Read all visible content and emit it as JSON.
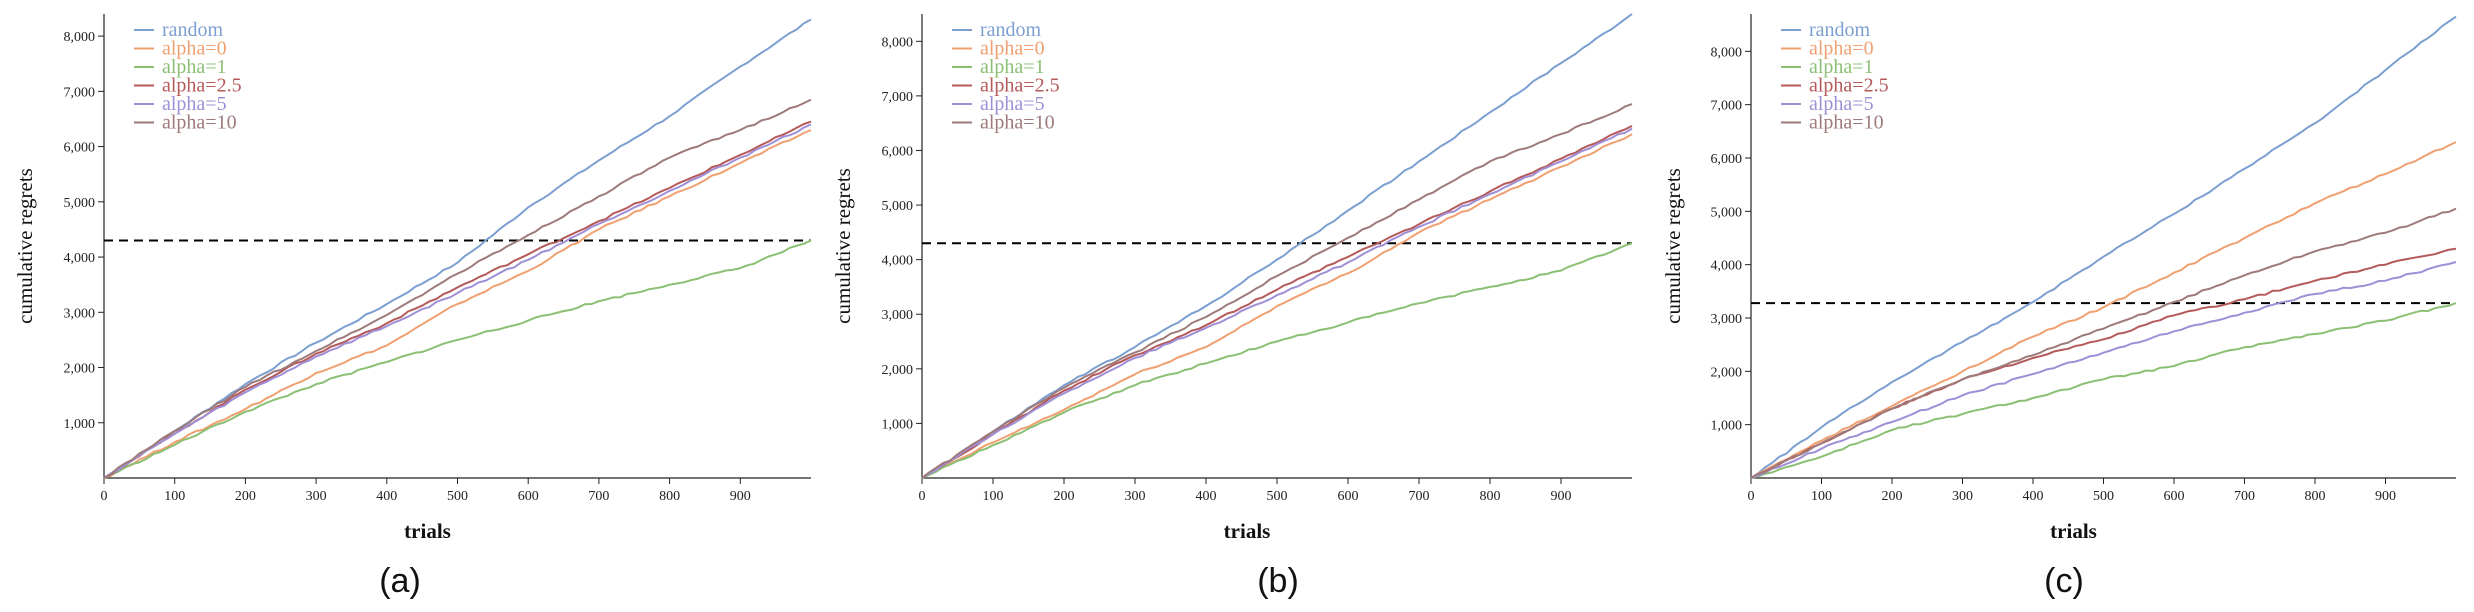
{
  "chart_data": [
    {
      "type": "line",
      "caption": "(a)",
      "xlabel": "trials",
      "ylabel": "cumulative regrets",
      "xlim": [
        0,
        1000
      ],
      "ylim": [
        0,
        8400
      ],
      "x_ticks": [
        0,
        100,
        200,
        300,
        400,
        500,
        600,
        700,
        800,
        900
      ],
      "x_tick_labels": [
        "0",
        "100",
        "200",
        "300",
        "400",
        "500",
        "600",
        "700",
        "800",
        "900"
      ],
      "y_ticks": [
        1000,
        2000,
        3000,
        4000,
        5000,
        6000,
        7000,
        8000
      ],
      "y_tick_labels": [
        "1,000",
        "2,000",
        "3,000",
        "4,000",
        "5,000",
        "6,000",
        "7,000",
        "8,000"
      ],
      "legend_position": "top-left",
      "hline": {
        "y": 4300,
        "style": "dashed",
        "color": "#000000"
      },
      "series": [
        {
          "name": "random",
          "color": "#7b9fd0",
          "points": [
            [
              0,
              0
            ],
            [
              100,
              850
            ],
            [
              200,
              1700
            ],
            [
              300,
              2450
            ],
            [
              400,
              3150
            ],
            [
              500,
              3900
            ],
            [
              600,
              4900
            ],
            [
              700,
              5750
            ],
            [
              800,
              6550
            ],
            [
              900,
              7450
            ],
            [
              1000,
              8300
            ]
          ]
        },
        {
          "name": "alpha=0",
          "color": "#f0a070",
          "points": [
            [
              0,
              0
            ],
            [
              100,
              650
            ],
            [
              200,
              1250
            ],
            [
              300,
              1900
            ],
            [
              400,
              2400
            ],
            [
              500,
              3150
            ],
            [
              600,
              3750
            ],
            [
              700,
              4500
            ],
            [
              800,
              5100
            ],
            [
              900,
              5700
            ],
            [
              1000,
              6300
            ]
          ]
        },
        {
          "name": "alpha=1",
          "color": "#8bc074",
          "points": [
            [
              0,
              0
            ],
            [
              100,
              600
            ],
            [
              200,
              1200
            ],
            [
              300,
              1700
            ],
            [
              400,
              2100
            ],
            [
              500,
              2500
            ],
            [
              600,
              2850
            ],
            [
              700,
              3200
            ],
            [
              800,
              3500
            ],
            [
              900,
              3800
            ],
            [
              1000,
              4300
            ]
          ]
        },
        {
          "name": "alpha=2.5",
          "color": "#b55a5a",
          "points": [
            [
              0,
              0
            ],
            [
              100,
              800
            ],
            [
              200,
              1600
            ],
            [
              300,
              2250
            ],
            [
              400,
              2800
            ],
            [
              500,
              3450
            ],
            [
              600,
              4050
            ],
            [
              700,
              4650
            ],
            [
              800,
              5250
            ],
            [
              900,
              5850
            ],
            [
              1000,
              6450
            ]
          ]
        },
        {
          "name": "alpha=5",
          "color": "#9f8fd6",
          "points": [
            [
              0,
              0
            ],
            [
              100,
              800
            ],
            [
              200,
              1550
            ],
            [
              300,
              2200
            ],
            [
              400,
              2750
            ],
            [
              500,
              3350
            ],
            [
              600,
              3950
            ],
            [
              700,
              4600
            ],
            [
              800,
              5200
            ],
            [
              900,
              5800
            ],
            [
              1000,
              6400
            ]
          ]
        },
        {
          "name": "alpha=10",
          "color": "#9e7a7a",
          "points": [
            [
              0,
              0
            ],
            [
              100,
              850
            ],
            [
              200,
              1650
            ],
            [
              300,
              2300
            ],
            [
              400,
              2950
            ],
            [
              500,
              3700
            ],
            [
              600,
              4400
            ],
            [
              700,
              5100
            ],
            [
              800,
              5800
            ],
            [
              900,
              6300
            ],
            [
              1000,
              6850
            ]
          ]
        }
      ]
    },
    {
      "type": "line",
      "caption": "(b)",
      "xlabel": "trials",
      "ylabel": "cumulative regrets",
      "xlim": [
        0,
        1000
      ],
      "ylim": [
        0,
        8500
      ],
      "x_ticks": [
        0,
        100,
        200,
        300,
        400,
        500,
        600,
        700,
        800,
        900
      ],
      "x_tick_labels": [
        "0",
        "100",
        "200",
        "300",
        "400",
        "500",
        "600",
        "700",
        "800",
        "900"
      ],
      "y_ticks": [
        1000,
        2000,
        3000,
        4000,
        5000,
        6000,
        7000,
        8000
      ],
      "y_tick_labels": [
        "1,000",
        "2,000",
        "3,000",
        "4,000",
        "5,000",
        "6,000",
        "7,000",
        "8,000"
      ],
      "legend_position": "top-left",
      "hline": {
        "y": 4300,
        "style": "dashed",
        "color": "#000000"
      },
      "series": [
        {
          "name": "random",
          "color": "#7b9fd0",
          "points": [
            [
              0,
              0
            ],
            [
              100,
              850
            ],
            [
              200,
              1700
            ],
            [
              300,
              2400
            ],
            [
              400,
              3150
            ],
            [
              500,
              4000
            ],
            [
              600,
              4900
            ],
            [
              700,
              5800
            ],
            [
              800,
              6700
            ],
            [
              900,
              7600
            ],
            [
              1000,
              8500
            ]
          ]
        },
        {
          "name": "alpha=0",
          "color": "#f0a070",
          "points": [
            [
              0,
              0
            ],
            [
              100,
              650
            ],
            [
              200,
              1250
            ],
            [
              300,
              1900
            ],
            [
              400,
              2400
            ],
            [
              500,
              3150
            ],
            [
              600,
              3750
            ],
            [
              700,
              4500
            ],
            [
              800,
              5100
            ],
            [
              900,
              5700
            ],
            [
              1000,
              6300
            ]
          ]
        },
        {
          "name": "alpha=1",
          "color": "#8bc074",
          "points": [
            [
              0,
              0
            ],
            [
              100,
              600
            ],
            [
              200,
              1200
            ],
            [
              300,
              1700
            ],
            [
              400,
              2100
            ],
            [
              500,
              2500
            ],
            [
              600,
              2850
            ],
            [
              700,
              3200
            ],
            [
              800,
              3500
            ],
            [
              900,
              3800
            ],
            [
              1000,
              4300
            ]
          ]
        },
        {
          "name": "alpha=2.5",
          "color": "#b55a5a",
          "points": [
            [
              0,
              0
            ],
            [
              100,
              800
            ],
            [
              200,
              1600
            ],
            [
              300,
              2250
            ],
            [
              400,
              2800
            ],
            [
              500,
              3450
            ],
            [
              600,
              4050
            ],
            [
              700,
              4650
            ],
            [
              800,
              5250
            ],
            [
              900,
              5850
            ],
            [
              1000,
              6450
            ]
          ]
        },
        {
          "name": "alpha=5",
          "color": "#9f8fd6",
          "points": [
            [
              0,
              0
            ],
            [
              100,
              800
            ],
            [
              200,
              1550
            ],
            [
              300,
              2200
            ],
            [
              400,
              2750
            ],
            [
              500,
              3350
            ],
            [
              600,
              3950
            ],
            [
              700,
              4600
            ],
            [
              800,
              5200
            ],
            [
              900,
              5800
            ],
            [
              1000,
              6400
            ]
          ]
        },
        {
          "name": "alpha=10",
          "color": "#9e7a7a",
          "points": [
            [
              0,
              0
            ],
            [
              100,
              850
            ],
            [
              200,
              1650
            ],
            [
              300,
              2300
            ],
            [
              400,
              2950
            ],
            [
              500,
              3700
            ],
            [
              600,
              4400
            ],
            [
              700,
              5100
            ],
            [
              800,
              5800
            ],
            [
              900,
              6300
            ],
            [
              1000,
              6850
            ]
          ]
        }
      ]
    },
    {
      "type": "line",
      "caption": "(c)",
      "xlabel": "trials",
      "ylabel": "cumulative regrets",
      "xlim": [
        0,
        1000
      ],
      "ylim": [
        0,
        8700
      ],
      "x_ticks": [
        0,
        100,
        200,
        300,
        400,
        500,
        600,
        700,
        800,
        900
      ],
      "x_tick_labels": [
        "0",
        "100",
        "200",
        "300",
        "400",
        "500",
        "600",
        "700",
        "800",
        "900"
      ],
      "y_ticks": [
        1000,
        2000,
        3000,
        4000,
        5000,
        6000,
        7000,
        8000
      ],
      "y_tick_labels": [
        "1,000",
        "2,000",
        "3,000",
        "4,000",
        "5,000",
        "6,000",
        "7,000",
        "8,000"
      ],
      "legend_position": "top-left",
      "hline": {
        "y": 3280,
        "style": "dashed",
        "color": "#000000"
      },
      "series": [
        {
          "name": "random",
          "color": "#7b9fd0",
          "points": [
            [
              0,
              0
            ],
            [
              100,
              950
            ],
            [
              200,
              1800
            ],
            [
              300,
              2550
            ],
            [
              400,
              3300
            ],
            [
              500,
              4150
            ],
            [
              600,
              4950
            ],
            [
              700,
              5800
            ],
            [
              800,
              6650
            ],
            [
              900,
              7650
            ],
            [
              1000,
              8650
            ]
          ]
        },
        {
          "name": "alpha=0",
          "color": "#f0a070",
          "points": [
            [
              0,
              0
            ],
            [
              100,
              700
            ],
            [
              200,
              1350
            ],
            [
              300,
              2000
            ],
            [
              400,
              2650
            ],
            [
              500,
              3200
            ],
            [
              600,
              3850
            ],
            [
              700,
              4500
            ],
            [
              800,
              5150
            ],
            [
              900,
              5700
            ],
            [
              1000,
              6300
            ]
          ]
        },
        {
          "name": "alpha=1",
          "color": "#8bc074",
          "points": [
            [
              0,
              0
            ],
            [
              100,
              400
            ],
            [
              200,
              900
            ],
            [
              300,
              1200
            ],
            [
              400,
              1500
            ],
            [
              500,
              1850
            ],
            [
              600,
              2100
            ],
            [
              700,
              2450
            ],
            [
              800,
              2700
            ],
            [
              900,
              2950
            ],
            [
              1000,
              3280
            ]
          ]
        },
        {
          "name": "alpha=2.5",
          "color": "#b55a5a",
          "points": [
            [
              0,
              0
            ],
            [
              100,
              650
            ],
            [
              200,
              1300
            ],
            [
              300,
              1850
            ],
            [
              400,
              2250
            ],
            [
              500,
              2600
            ],
            [
              600,
              3050
            ],
            [
              700,
              3350
            ],
            [
              800,
              3700
            ],
            [
              900,
              4000
            ],
            [
              1000,
              4300
            ]
          ]
        },
        {
          "name": "alpha=5",
          "color": "#9f8fd6",
          "points": [
            [
              0,
              0
            ],
            [
              100,
              550
            ],
            [
              200,
              1050
            ],
            [
              300,
              1550
            ],
            [
              400,
              1950
            ],
            [
              500,
              2350
            ],
            [
              600,
              2750
            ],
            [
              700,
              3100
            ],
            [
              800,
              3450
            ],
            [
              900,
              3700
            ],
            [
              1000,
              4050
            ]
          ]
        },
        {
          "name": "alpha=10",
          "color": "#9e7a7a",
          "points": [
            [
              0,
              0
            ],
            [
              100,
              650
            ],
            [
              200,
              1300
            ],
            [
              300,
              1850
            ],
            [
              400,
              2300
            ],
            [
              500,
              2800
            ],
            [
              600,
              3300
            ],
            [
              700,
              3800
            ],
            [
              800,
              4250
            ],
            [
              900,
              4600
            ],
            [
              1000,
              5050
            ]
          ]
        }
      ]
    }
  ]
}
